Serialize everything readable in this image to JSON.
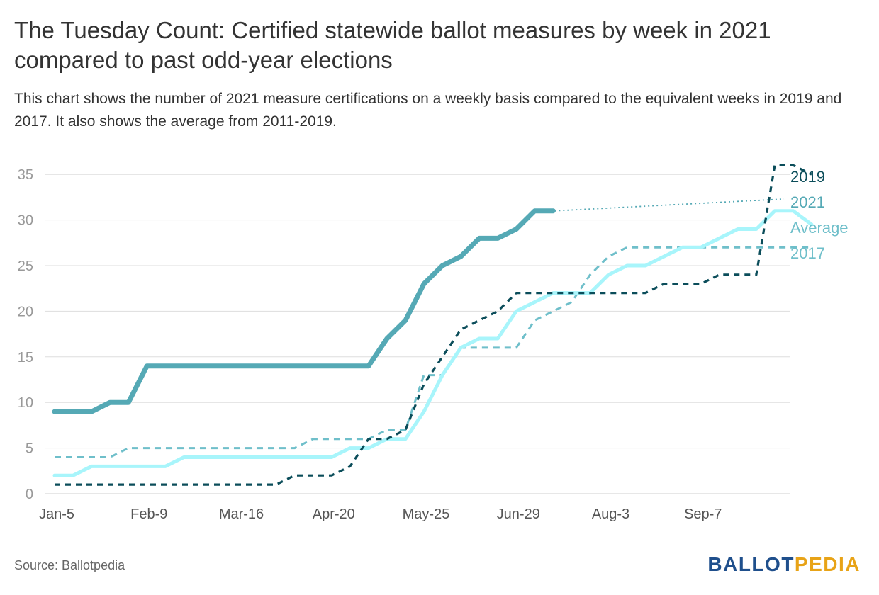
{
  "header": {
    "title": "The Tuesday Count: Certified statewide ballot measures by week in 2021 compared to past odd-year elections",
    "subtitle": "This chart shows the number of 2021 measure certifications on a weekly basis compared to the equivalent weeks in 2019 and 2017. It also shows the average from 2011-2019."
  },
  "footer": {
    "source": "Source: Ballotpedia",
    "logo_part1": "BALLOT",
    "logo_part2": "PEDIA"
  },
  "colors": {
    "s2021": "#55a9b5",
    "s2019": "#0b4d5a",
    "s2017": "#6fbfca",
    "average": "#a8f5fb",
    "grid": "#dddddd",
    "tick": "#999999"
  },
  "chart_data": {
    "type": "line",
    "title": "The Tuesday Count: Certified statewide ballot measures by week in 2021 compared to past odd-year elections",
    "xlabel": "",
    "ylabel": "",
    "ylim": [
      0,
      35
    ],
    "yticks": [
      0,
      5,
      10,
      15,
      20,
      25,
      30,
      35
    ],
    "grid": true,
    "legend": "right-end labels",
    "x_tick_labels": [
      {
        "week": 0,
        "label": "Jan-5"
      },
      {
        "week": 5,
        "label": "Feb-9"
      },
      {
        "week": 10,
        "label": "Mar-16"
      },
      {
        "week": 15,
        "label": "Apr-20"
      },
      {
        "week": 20,
        "label": "May-25"
      },
      {
        "week": 25,
        "label": "Jun-29"
      },
      {
        "week": 30,
        "label": "Aug-3"
      },
      {
        "week": 35,
        "label": "Sep-7"
      }
    ],
    "series": [
      {
        "name": "2019",
        "style": "dashed",
        "values": [
          1,
          1,
          1,
          1,
          1,
          1,
          1,
          1,
          1,
          1,
          1,
          1,
          1,
          2,
          2,
          2,
          3,
          6,
          6,
          7,
          12,
          15,
          18,
          19,
          20,
          22,
          22,
          22,
          22,
          22,
          22,
          22,
          22,
          23,
          23,
          23,
          24,
          24,
          24,
          36,
          36,
          35
        ]
      },
      {
        "name": "2021",
        "style": "thick",
        "values": [
          9,
          9,
          9,
          10,
          10,
          14,
          14,
          14,
          14,
          14,
          14,
          14,
          14,
          14,
          14,
          14,
          14,
          14,
          17,
          19,
          23,
          25,
          26,
          28,
          28,
          29,
          31,
          31
        ],
        "projection_to": 32.3
      },
      {
        "name": "Average",
        "style": "solid",
        "values": [
          2,
          2,
          3,
          3,
          3,
          3,
          3,
          4,
          4,
          4,
          4,
          4,
          4,
          4,
          4,
          4,
          5,
          5,
          6,
          6,
          9,
          13,
          16,
          17,
          17,
          20,
          21,
          22,
          22,
          22,
          24,
          25,
          25,
          26,
          27,
          27,
          28,
          29,
          29,
          31,
          31,
          29.5
        ]
      },
      {
        "name": "2017",
        "style": "dashed",
        "values": [
          4,
          4,
          4,
          4,
          5,
          5,
          5,
          5,
          5,
          5,
          5,
          5,
          5,
          5,
          6,
          6,
          6,
          6,
          7,
          7,
          13,
          13,
          16,
          16,
          16,
          16,
          19,
          20,
          21,
          24,
          26,
          27,
          27,
          27,
          27,
          27,
          27,
          27,
          27,
          27,
          27,
          27
        ]
      }
    ]
  }
}
